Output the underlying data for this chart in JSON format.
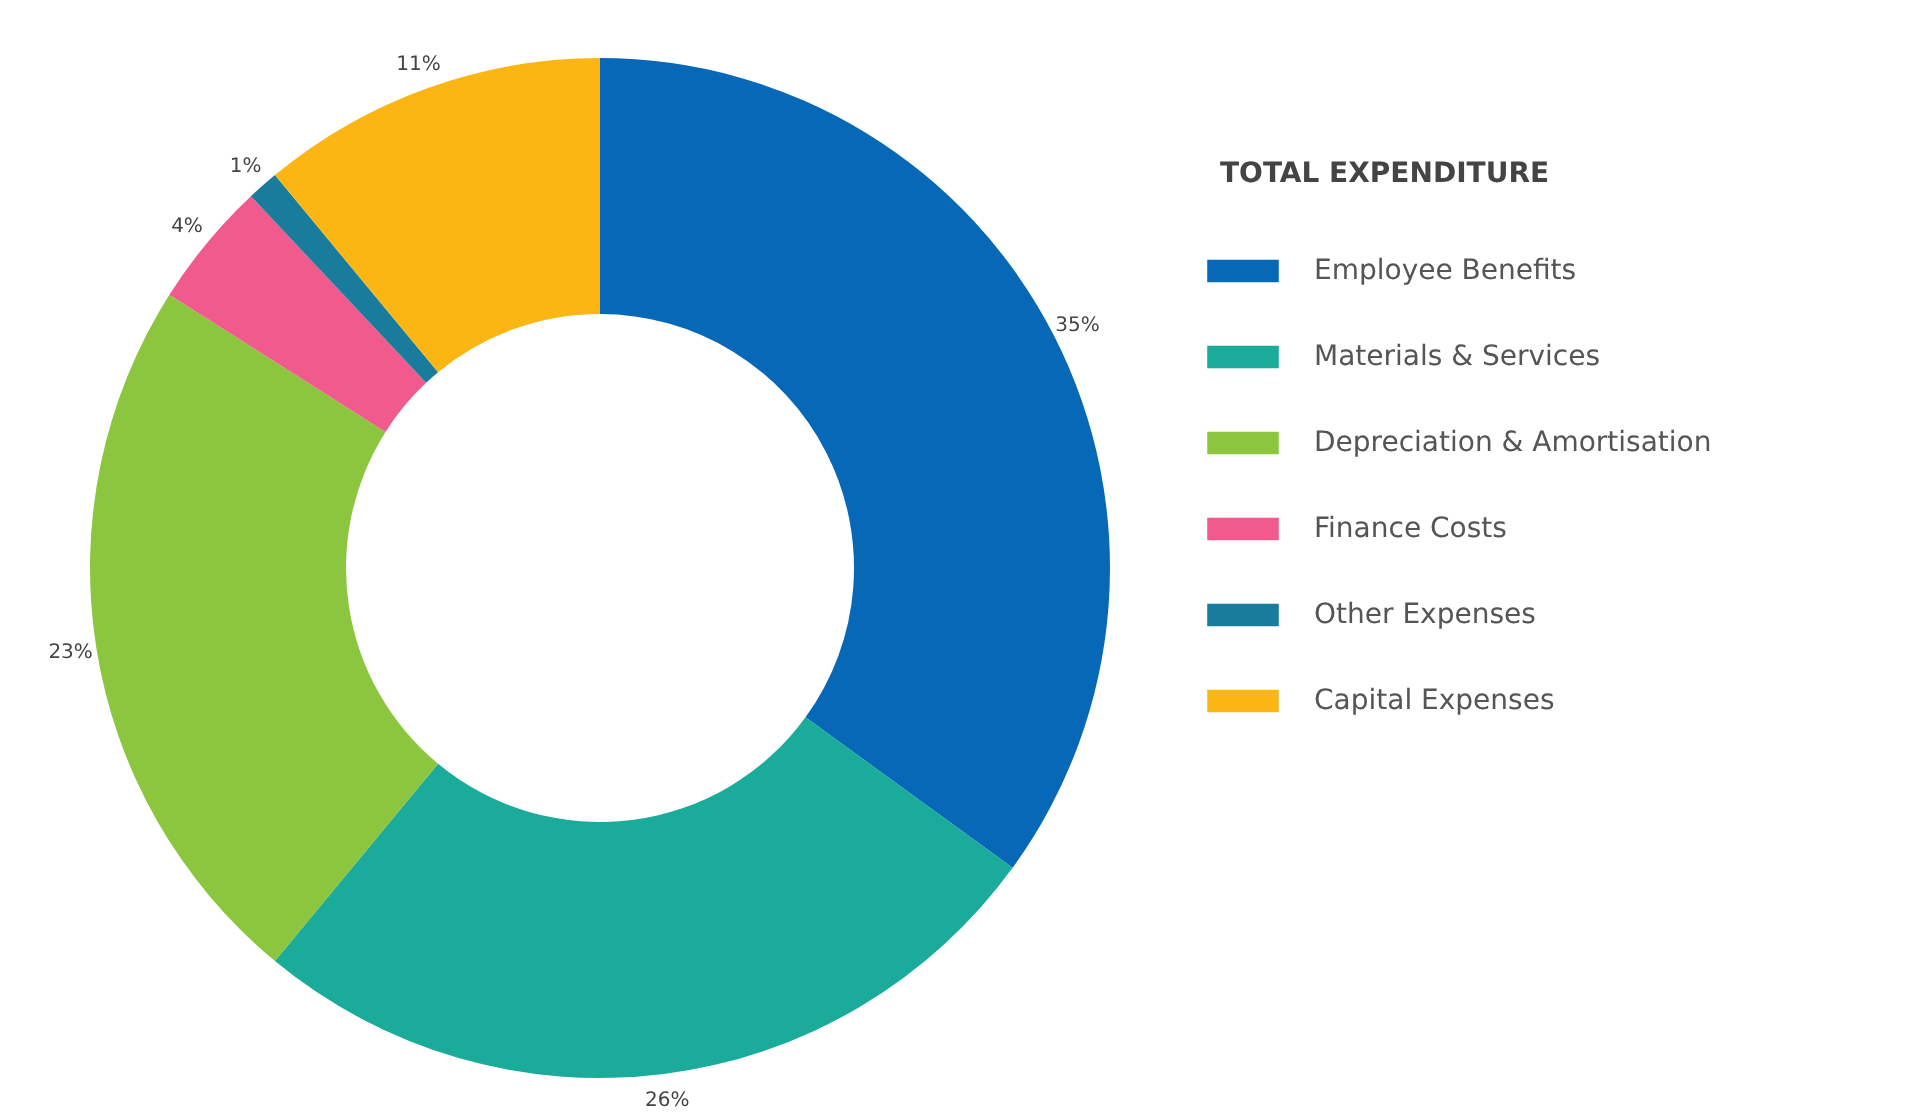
{
  "chart_data": {
    "type": "donut",
    "legend_title": "TOTAL EXPENDITURE",
    "legend": "right",
    "categories": [
      "Employee Benefits",
      "Materials & Services",
      "Depreciation & Amortisation",
      "Finance Costs",
      "Other Expenses",
      "Capital Expenses"
    ],
    "values": [
      35,
      26,
      23,
      4,
      1,
      11
    ],
    "colors": [
      "#0868b8",
      "#1aab9b",
      "#8cc63f",
      "#f05a8c",
      "#1a7c9c",
      "#fbb614"
    ],
    "value_labels": [
      "35%",
      "26%",
      "23%",
      "4%",
      "1%",
      "11%"
    ]
  }
}
